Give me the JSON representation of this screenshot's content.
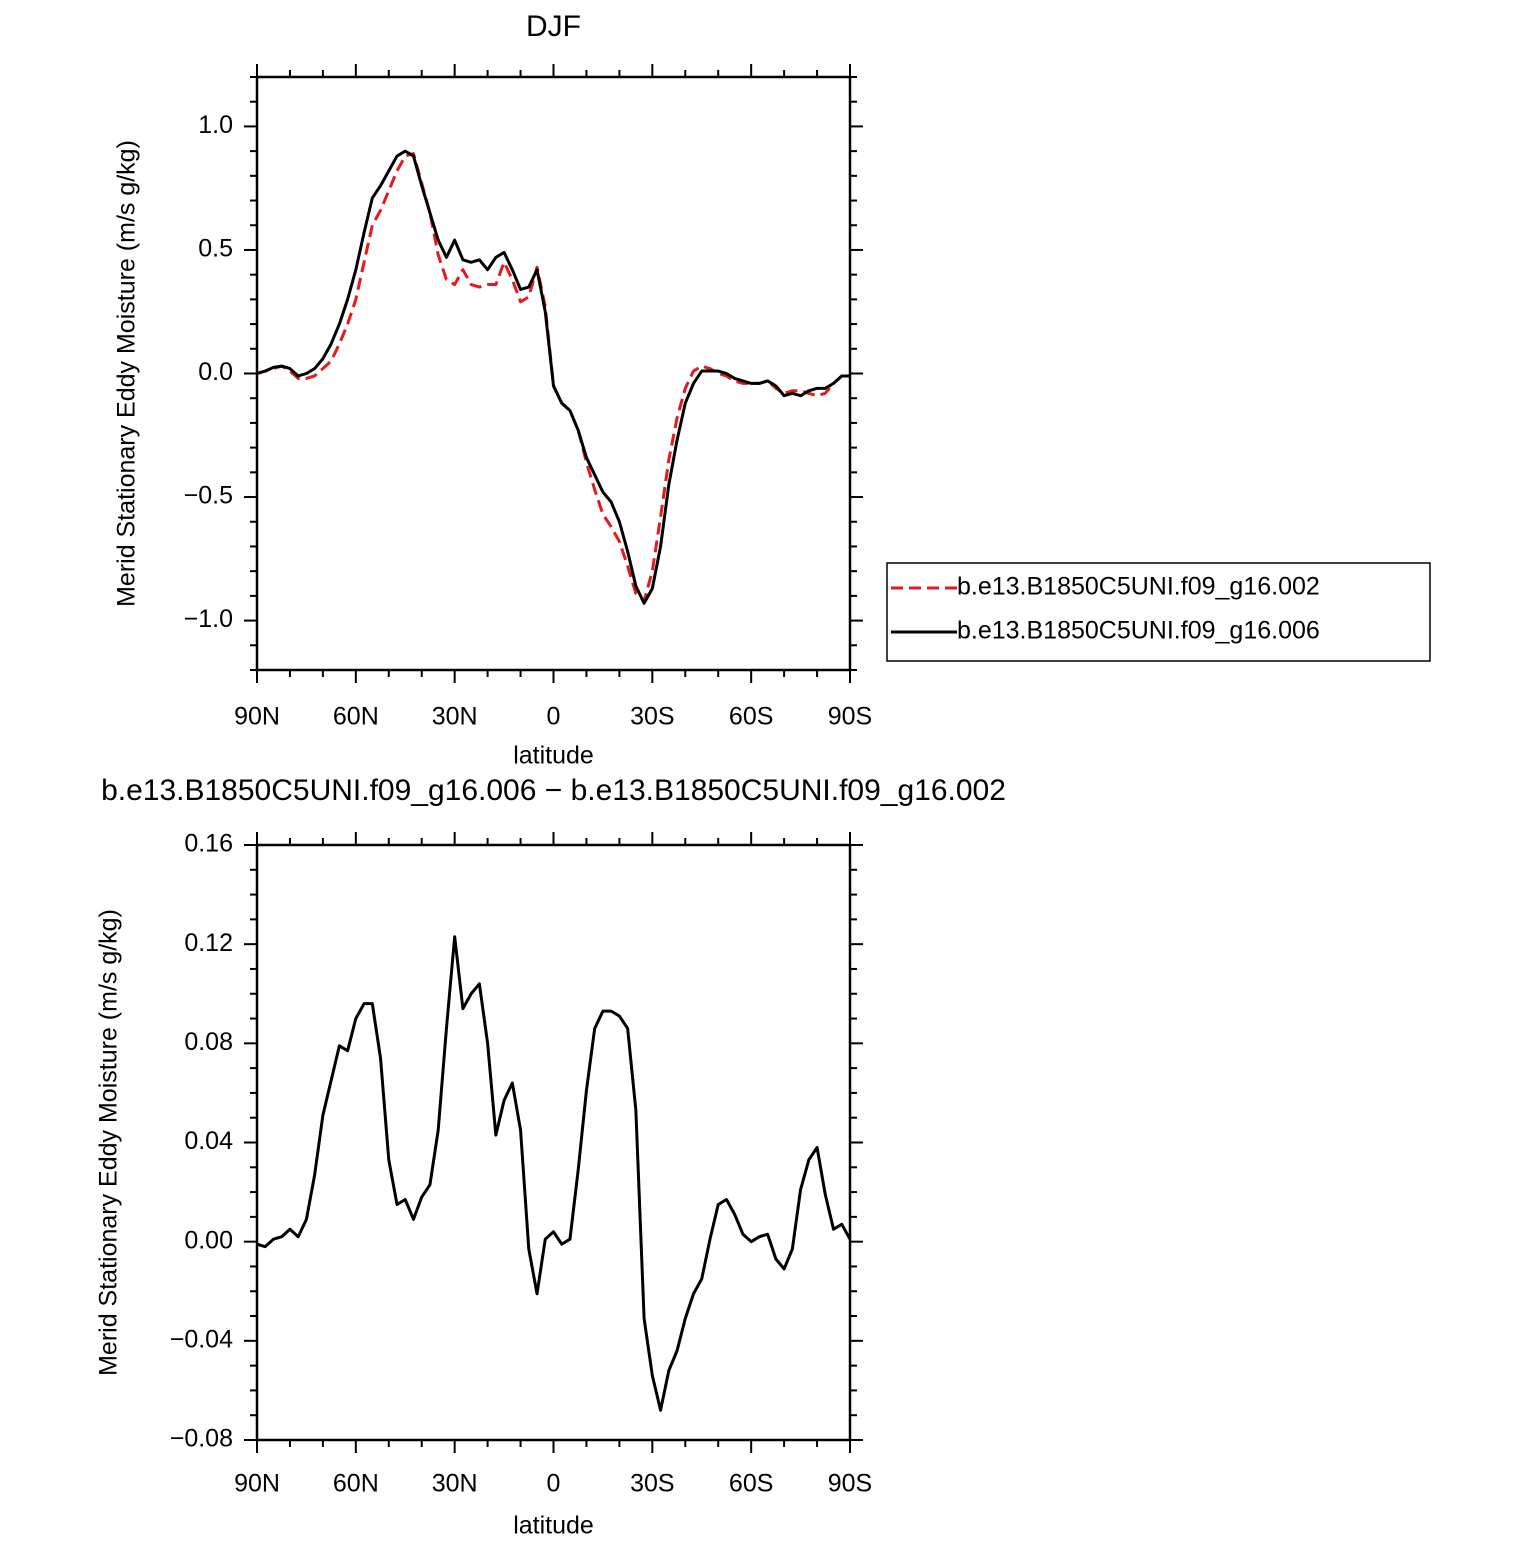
{
  "chart_data": [
    {
      "type": "line",
      "title": "DJF",
      "xlabel": "latitude",
      "ylabel": "Merid Stationary Eddy Moisture (m/s g/kg)",
      "x": [
        90,
        87.5,
        85,
        82.5,
        80,
        77.5,
        75,
        72.5,
        70,
        67.5,
        65,
        62.5,
        60,
        57.5,
        55,
        52.5,
        50,
        47.5,
        45,
        42.5,
        40,
        37.5,
        35,
        32.5,
        30,
        27.5,
        25,
        22.5,
        20,
        17.5,
        15,
        12.5,
        10,
        7.5,
        5,
        2.5,
        0,
        -2.5,
        -5,
        -7.5,
        -10,
        -12.5,
        -15,
        -17.5,
        -20,
        -22.5,
        -25,
        -27.5,
        -30,
        -32.5,
        -35,
        -37.5,
        -40,
        -42.5,
        -45,
        -47.5,
        -50,
        -52.5,
        -55,
        -57.5,
        -60,
        -62.5,
        -65,
        -67.5,
        -70,
        -72.5,
        -75,
        -77.5,
        -80,
        -82.5,
        -85,
        -87.5,
        -90
      ],
      "series": [
        {
          "name": "b.e13.B1850C5UNI.f09_g16.002",
          "color": "#e41a1c",
          "line_style": "dashed",
          "values": [
            0.0,
            0.01,
            0.02,
            0.03,
            0.01,
            -0.02,
            -0.02,
            -0.01,
            0.02,
            0.05,
            0.12,
            0.2,
            0.3,
            0.45,
            0.6,
            0.66,
            0.74,
            0.82,
            0.88,
            0.89,
            0.77,
            0.65,
            0.48,
            0.38,
            0.36,
            0.42,
            0.36,
            0.35,
            0.36,
            0.36,
            0.45,
            0.38,
            0.29,
            0.31,
            0.43,
            0.27,
            -0.05,
            -0.12,
            -0.15,
            -0.23,
            -0.36,
            -0.47,
            -0.57,
            -0.62,
            -0.68,
            -0.78,
            -0.89,
            -0.92,
            -0.8,
            -0.58,
            -0.35,
            -0.18,
            -0.06,
            0.01,
            0.03,
            0.02,
            0.0,
            -0.01,
            -0.03,
            -0.04,
            -0.04,
            -0.04,
            -0.03,
            -0.06,
            -0.08,
            -0.07,
            -0.07,
            -0.08,
            -0.09,
            -0.08,
            -0.04,
            -0.01,
            -0.01
          ]
        },
        {
          "name": "b.e13.B1850C5UNI.f09_g16.006",
          "color": "#000000",
          "line_style": "solid",
          "values": [
            0.0,
            0.01,
            0.025,
            0.03,
            0.02,
            -0.01,
            0.0,
            0.02,
            0.06,
            0.12,
            0.2,
            0.3,
            0.42,
            0.57,
            0.71,
            0.76,
            0.82,
            0.88,
            0.9,
            0.88,
            0.76,
            0.65,
            0.54,
            0.47,
            0.54,
            0.46,
            0.45,
            0.46,
            0.42,
            0.47,
            0.49,
            0.42,
            0.34,
            0.35,
            0.42,
            0.25,
            -0.05,
            -0.12,
            -0.15,
            -0.23,
            -0.34,
            -0.41,
            -0.48,
            -0.52,
            -0.6,
            -0.72,
            -0.86,
            -0.93,
            -0.87,
            -0.7,
            -0.45,
            -0.27,
            -0.12,
            -0.04,
            0.01,
            0.01,
            0.01,
            0.0,
            -0.02,
            -0.03,
            -0.04,
            -0.04,
            -0.03,
            -0.05,
            -0.09,
            -0.08,
            -0.09,
            -0.07,
            -0.06,
            -0.06,
            -0.04,
            -0.01,
            -0.01
          ]
        }
      ],
      "xlim": [
        90,
        -90
      ],
      "xticks": [
        {
          "value": 90,
          "label": "90N"
        },
        {
          "value": 60,
          "label": "60N"
        },
        {
          "value": 30,
          "label": "30N"
        },
        0,
        {
          "value": -30,
          "label": "30S"
        },
        {
          "value": -60,
          "label": "60S"
        },
        {
          "value": -90,
          "label": "90S"
        }
      ],
      "ylim": [
        -1.2,
        1.2
      ],
      "yticks": [
        {
          "value": -1,
          "label": "−1.0"
        },
        {
          "value": -0.5,
          "label": "−0.5"
        },
        {
          "value": 0,
          "label": "0.0"
        },
        0.5,
        {
          "value": 1,
          "label": "1.0"
        }
      ],
      "legend": "right"
    },
    {
      "type": "line",
      "title": "b.e13.B1850C5UNI.f09_g16.006 − b.e13.B1850C5UNI.f09_g16.002",
      "xlabel": "latitude",
      "ylabel": "Merid Stationary Eddy Moisture (m/s g/kg)",
      "x": [
        90,
        87.5,
        85,
        82.5,
        80,
        77.5,
        75,
        72.5,
        70,
        67.5,
        65,
        62.5,
        60,
        57.5,
        55,
        52.5,
        50,
        47.5,
        45,
        42.5,
        40,
        37.5,
        35,
        32.5,
        30,
        27.5,
        25,
        22.5,
        20,
        17.5,
        15,
        12.5,
        10,
        7.5,
        5,
        2.5,
        0,
        -2.5,
        -5,
        -7.5,
        -10,
        -12.5,
        -15,
        -17.5,
        -20,
        -22.5,
        -25,
        -27.5,
        -30,
        -32.5,
        -35,
        -37.5,
        -40,
        -42.5,
        -45,
        -47.5,
        -50,
        -52.5,
        -55,
        -57.5,
        -60,
        -62.5,
        -65,
        -67.5,
        -70,
        -72.5,
        -75,
        -77.5,
        -80,
        -82.5,
        -85,
        -87.5,
        -90
      ],
      "series": [
        {
          "color": "#000000",
          "line_style": "solid",
          "values": [
            -0.001,
            -0.002,
            0.001,
            0.002,
            0.005,
            0.002,
            0.009,
            0.027,
            0.051,
            0.065,
            0.079,
            0.077,
            0.09,
            0.096,
            0.096,
            0.074,
            0.033,
            0.015,
            0.017,
            0.009,
            0.018,
            0.023,
            0.045,
            0.086,
            0.123,
            0.094,
            0.1,
            0.104,
            0.08,
            0.043,
            0.057,
            0.064,
            0.045,
            -0.003,
            -0.021,
            0.001,
            0.004,
            -0.001,
            0.001,
            0.029,
            0.061,
            0.086,
            0.093,
            0.093,
            0.091,
            0.086,
            0.053,
            -0.031,
            -0.054,
            -0.068,
            -0.052,
            -0.044,
            -0.031,
            -0.021,
            -0.015,
            0.001,
            0.015,
            0.017,
            0.011,
            0.003,
            0.0,
            0.002,
            0.003,
            -0.007,
            -0.011,
            -0.003,
            0.021,
            0.033,
            0.038,
            0.019,
            0.005,
            0.007,
            0.001
          ]
        }
      ],
      "xlim": [
        90,
        -90
      ],
      "xticks": [
        {
          "value": 90,
          "label": "90N"
        },
        {
          "value": 60,
          "label": "60N"
        },
        {
          "value": 30,
          "label": "30N"
        },
        0,
        {
          "value": -30,
          "label": "30S"
        },
        {
          "value": -60,
          "label": "60S"
        },
        {
          "value": -90,
          "label": "90S"
        }
      ],
      "ylim": [
        -0.08,
        0.16
      ],
      "yticks": [
        {
          "value": -0.08,
          "label": "−0.08"
        },
        {
          "value": -0.04,
          "label": "−0.04"
        },
        {
          "value": 0,
          "label": "0.00"
        },
        0.04,
        0.08,
        0.12,
        0.16
      ]
    }
  ]
}
